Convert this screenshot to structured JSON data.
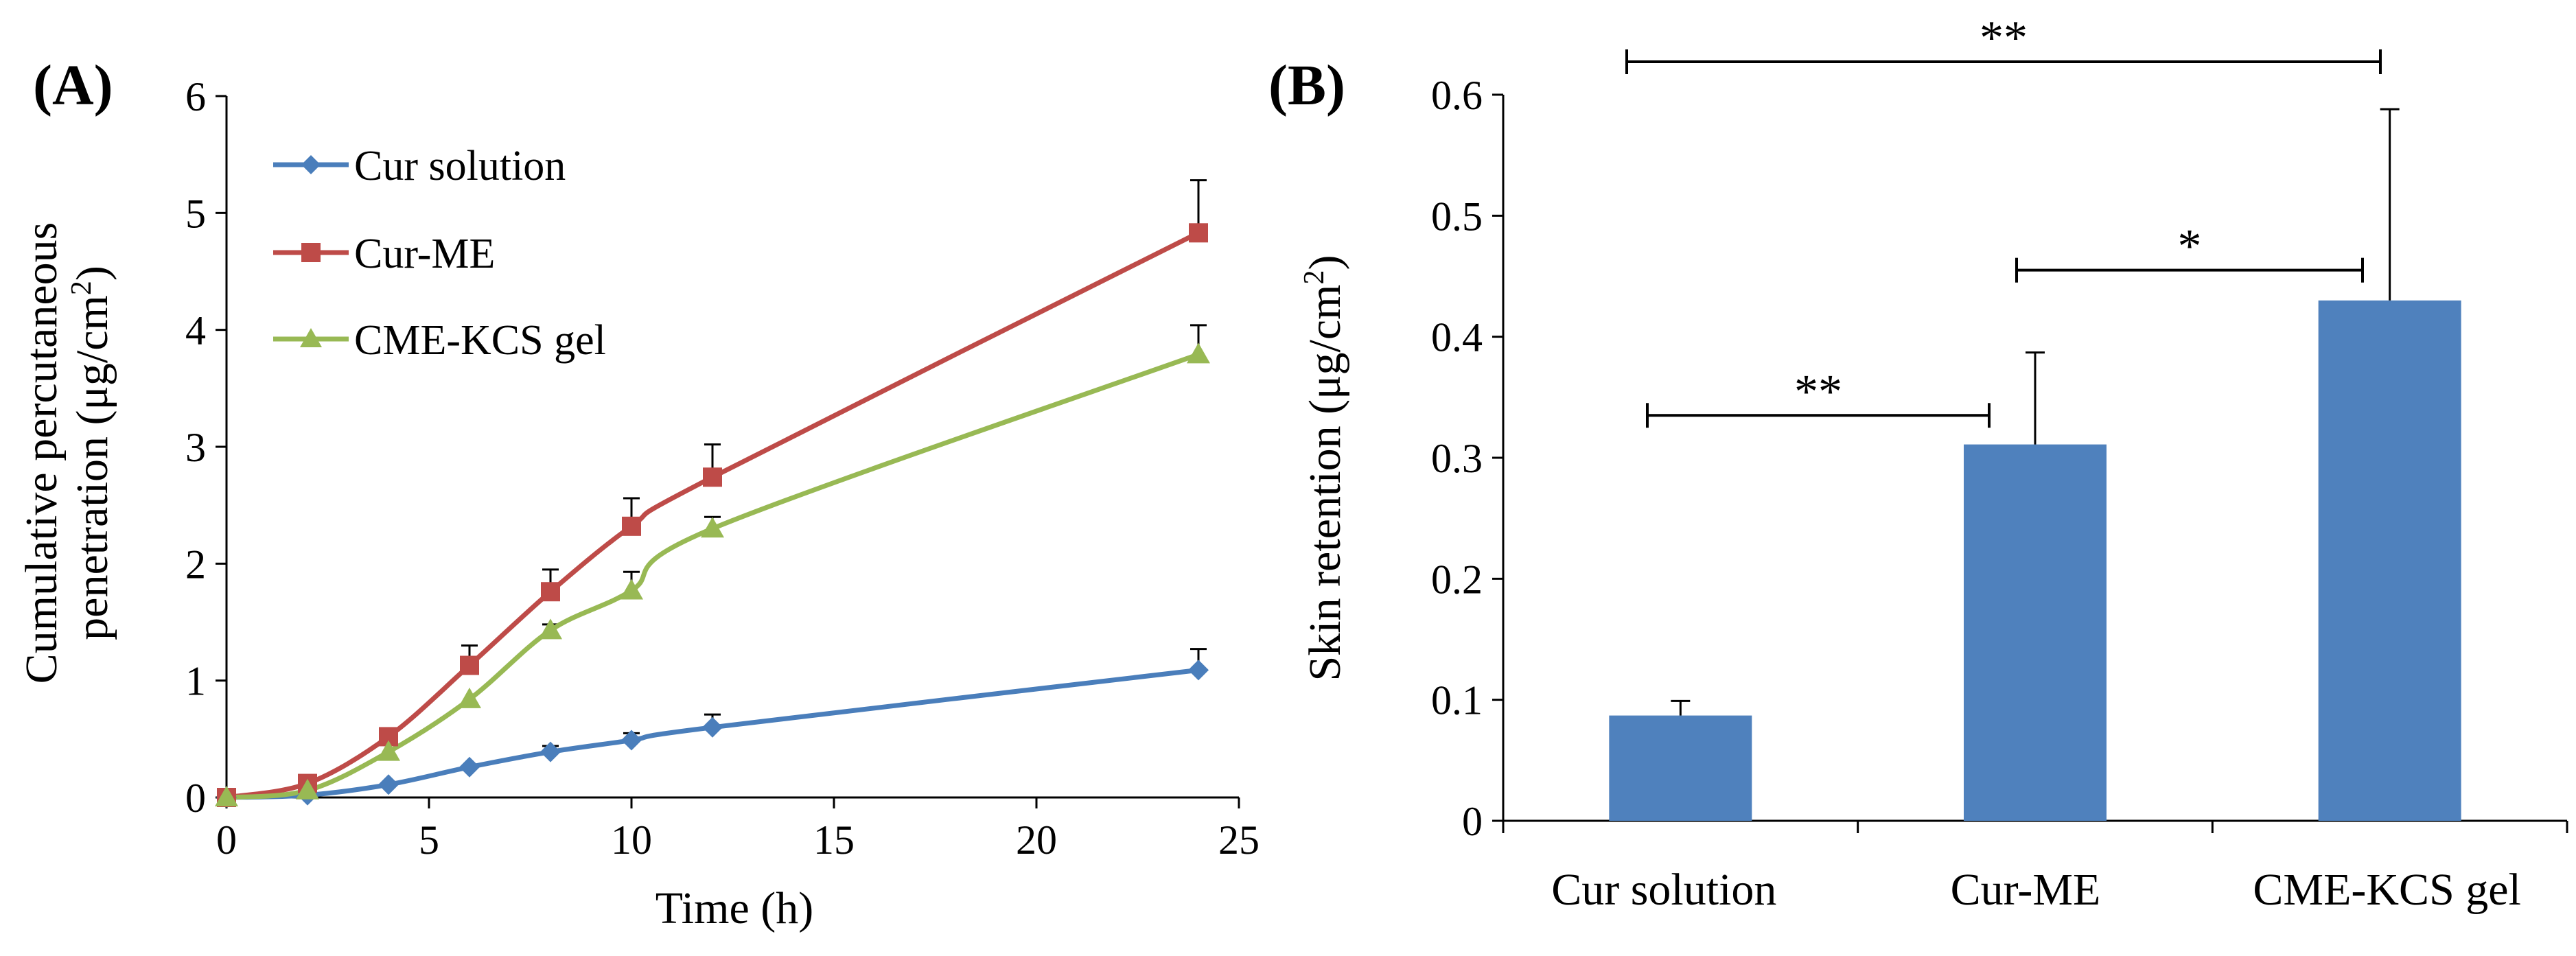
{
  "chart_data": [
    {
      "type": "line",
      "panel_label": "(A)",
      "xlabel": "Time (h)",
      "ylabel_line1": "Cumulative percutaneous",
      "ylabel_line2_main": "penetration (μg/cm",
      "ylabel_line2_sup": "2",
      "ylabel_line2_end": ")",
      "xlim": [
        0,
        25
      ],
      "ylim": [
        0,
        6
      ],
      "x_ticks": [
        "0",
        "5",
        "10",
        "15",
        "20",
        "25"
      ],
      "y_ticks": [
        "0",
        "1",
        "2",
        "3",
        "4",
        "5",
        "6"
      ],
      "legend_position": "top-left",
      "x": [
        0,
        2,
        4,
        6,
        8,
        10,
        12,
        24
      ],
      "series": [
        {
          "name": "Cur solution",
          "color": "#4A7EBB",
          "marker": "diamond",
          "values": [
            0,
            0.02,
            0.11,
            0.26,
            0.39,
            0.49,
            0.6,
            1.09
          ],
          "errors": [
            0,
            0,
            0,
            0,
            0.05,
            0.06,
            0.11,
            0.18
          ]
        },
        {
          "name": "Cur-ME",
          "color": "#BE4B48",
          "marker": "square",
          "values": [
            0,
            0.12,
            0.52,
            1.13,
            1.76,
            2.32,
            2.74,
            4.83
          ],
          "errors": [
            0,
            0,
            0,
            0.17,
            0.19,
            0.24,
            0.28,
            0.45
          ]
        },
        {
          "name": "CME-KCS gel",
          "color": "#98B954",
          "marker": "triangle",
          "values": [
            0,
            0.06,
            0.39,
            0.84,
            1.43,
            1.77,
            2.3,
            3.79
          ],
          "errors": [
            0,
            0,
            0,
            0,
            0.05,
            0.16,
            0.1,
            0.25
          ]
        }
      ]
    },
    {
      "type": "bar",
      "panel_label": "(B)",
      "ylabel_main": "Skin retention (μg/cm",
      "ylabel_sup": "2",
      "ylabel_end": ")",
      "ylim": [
        0,
        0.6
      ],
      "y_ticks": [
        "0",
        "0.1",
        "0.2",
        "0.3",
        "0.4",
        "0.5",
        "0.6"
      ],
      "categories": [
        "Cur solution",
        "Cur-ME",
        "CME-KCS gel"
      ],
      "values": [
        0.087,
        0.311,
        0.43
      ],
      "errors": [
        0.012,
        0.076,
        0.158
      ],
      "bar_color": "#4F81BD",
      "significance": [
        {
          "from": 0,
          "to": 1,
          "label": "**",
          "y": 0.335
        },
        {
          "from": 1,
          "to": 2,
          "label": "*",
          "y": 0.455
        },
        {
          "from": 0,
          "to": 2,
          "label": "**",
          "y": 0.62
        }
      ]
    }
  ]
}
